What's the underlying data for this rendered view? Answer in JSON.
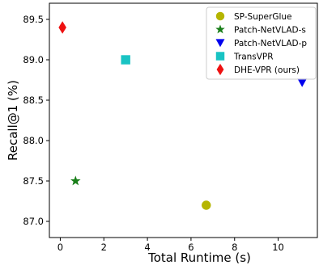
{
  "chart_data": {
    "type": "scatter",
    "xlabel": "Total Runtime (s)",
    "ylabel": "Recall@1 (%)",
    "xlim": [
      -0.5,
      11.8
    ],
    "ylim": [
      86.8,
      89.7
    ],
    "x_ticks": [
      0,
      2,
      4,
      6,
      8,
      10
    ],
    "y_ticks": [
      87.0,
      87.5,
      88.0,
      88.5,
      89.0,
      89.5
    ],
    "x_tick_labels": [
      "0",
      "2",
      "4",
      "6",
      "8",
      "10"
    ],
    "y_tick_labels": [
      "87.0",
      "87.5",
      "88.0",
      "88.5",
      "89.0",
      "89.5"
    ],
    "grid": false,
    "legend_position": "top-right",
    "series": [
      {
        "name": "SP-SuperGlue",
        "marker": "circle",
        "color": "#b5b500",
        "points": [
          {
            "x": 6.7,
            "y": 87.2
          }
        ]
      },
      {
        "name": "Patch-NetVLAD-s",
        "marker": "star",
        "color": "#1a7f1a",
        "points": [
          {
            "x": 0.7,
            "y": 87.5
          }
        ]
      },
      {
        "name": "Patch-NetVLAD-p",
        "marker": "triangle-down",
        "color": "#0000ee",
        "points": [
          {
            "x": 11.1,
            "y": 88.72
          }
        ]
      },
      {
        "name": "TransVPR",
        "marker": "square",
        "color": "#19c3c3",
        "points": [
          {
            "x": 3.0,
            "y": 89.0
          }
        ]
      },
      {
        "name": "DHE-VPR (ours)",
        "marker": "diamond",
        "color": "#ee1111",
        "points": [
          {
            "x": 0.1,
            "y": 89.4
          }
        ]
      }
    ]
  }
}
